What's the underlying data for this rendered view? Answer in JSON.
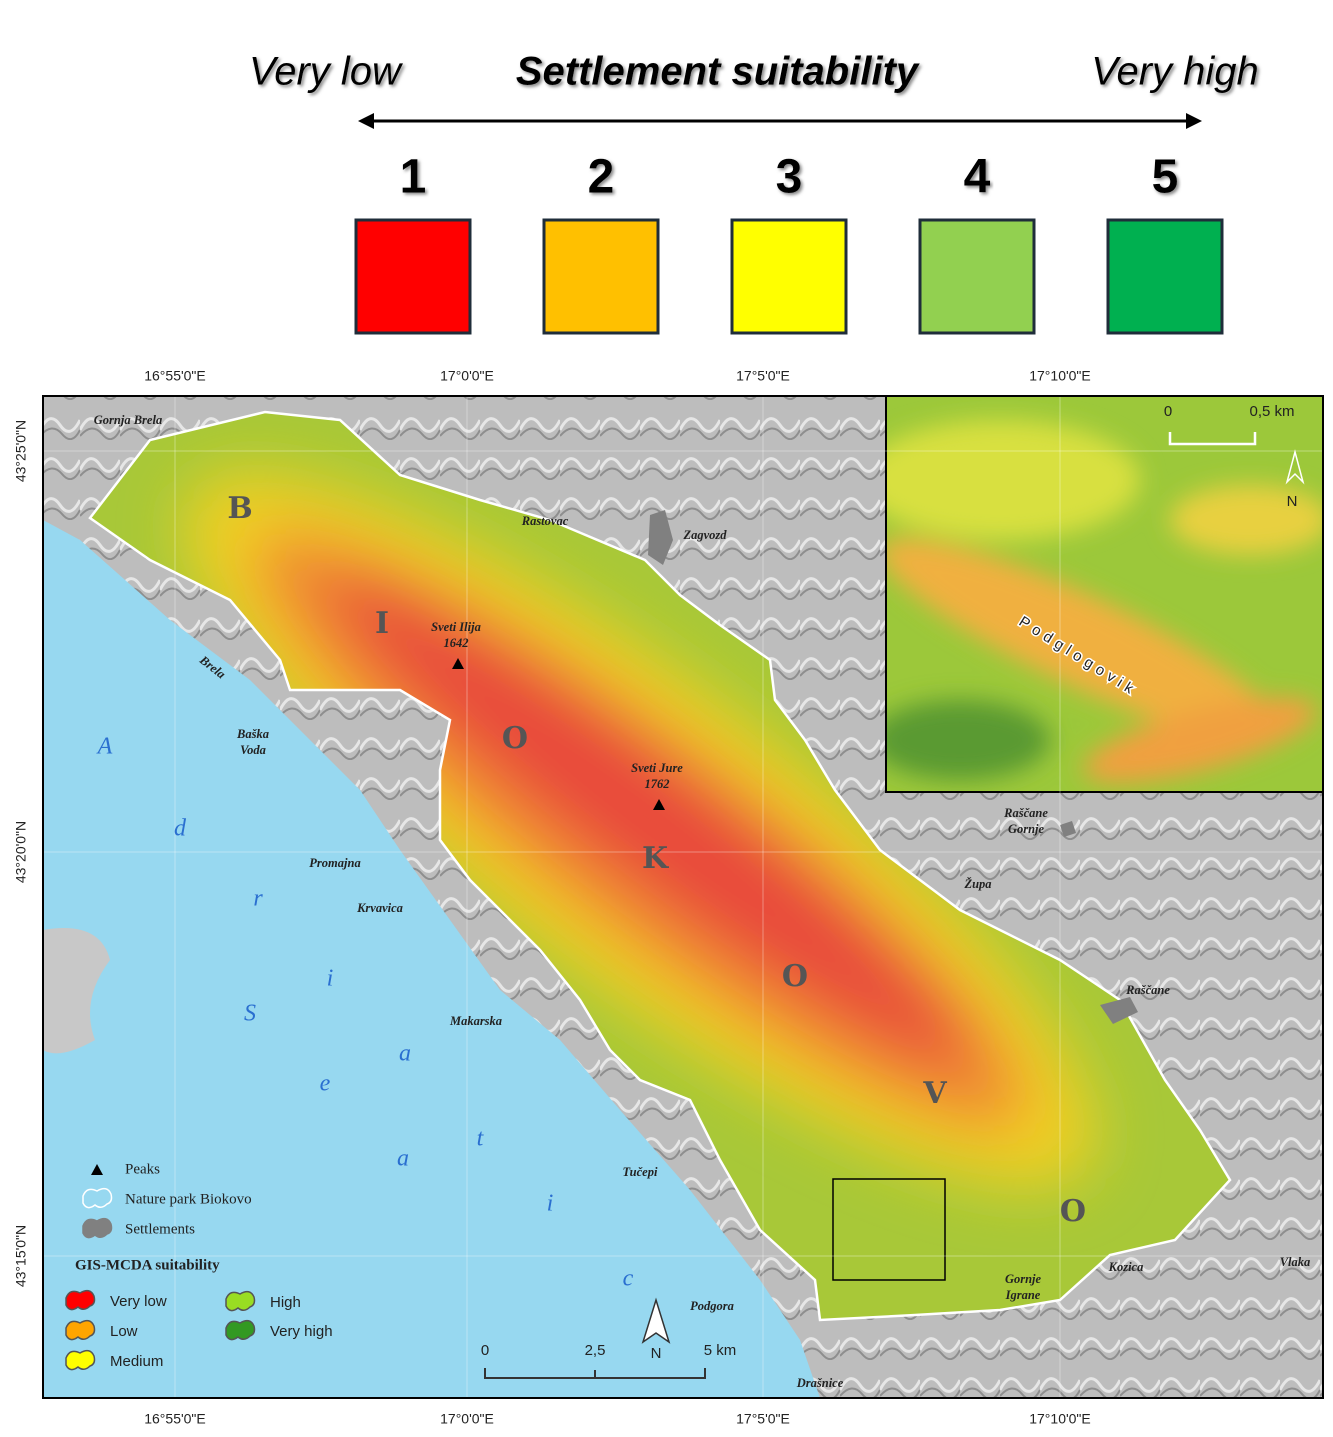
{
  "header": {
    "left_label": "Very low",
    "title": "Settlement suitability",
    "right_label": "Very high",
    "classes": [
      {
        "label": "1",
        "color": "#ff0000"
      },
      {
        "label": "2",
        "color": "#ffc000"
      },
      {
        "label": "3",
        "color": "#ffff00"
      },
      {
        "label": "4",
        "color": "#92d050"
      },
      {
        "label": "5",
        "color": "#00b050"
      }
    ]
  },
  "map": {
    "top_ticks": [
      "16°55'0\"E",
      "17°0'0\"E",
      "17°5'0\"E",
      "17°10'0\"E"
    ],
    "bottom_ticks": [
      "16°55'0\"E",
      "17°0'0\"E",
      "17°5'0\"E",
      "17°10'0\"E"
    ],
    "left_ticks": [
      "43°25'0\"N",
      "43°20'0\"N",
      "43°15'0\"N"
    ],
    "places": [
      {
        "lines": [
          "Gornja Brela"
        ]
      },
      {
        "lines": [
          "Rastovac"
        ]
      },
      {
        "lines": [
          "Zagvozd"
        ]
      },
      {
        "lines": [
          "Brela"
        ]
      },
      {
        "lines": [
          "Baška",
          "Voda"
        ]
      },
      {
        "lines": [
          "Promajna"
        ]
      },
      {
        "lines": [
          "Krvavica"
        ]
      },
      {
        "lines": [
          "Makarska"
        ]
      },
      {
        "lines": [
          "Tučepi"
        ]
      },
      {
        "lines": [
          "Podgora"
        ]
      },
      {
        "lines": [
          "Drašnice"
        ]
      },
      {
        "lines": [
          "Raščane",
          "Gornje"
        ]
      },
      {
        "lines": [
          "Župa"
        ]
      },
      {
        "lines": [
          "Raščane"
        ]
      },
      {
        "lines": [
          "Kozica"
        ]
      },
      {
        "lines": [
          "Vlaka"
        ]
      },
      {
        "lines": [
          "Gornje",
          "Igrane"
        ]
      }
    ],
    "peaks": [
      {
        "name": "Sveti Ilija",
        "elevation": "1642"
      },
      {
        "name": "Sveti Jure",
        "elevation": "1762"
      }
    ],
    "mountain_letters": [
      "B",
      "I",
      "O",
      "K",
      "O",
      "V",
      "O"
    ],
    "sea_letters": {
      "first_word": [
        "A",
        "d",
        "r",
        "i",
        "a",
        "t",
        "i",
        "c"
      ],
      "second_word": [
        "S",
        "e",
        "a"
      ]
    },
    "scale_bar": {
      "labels": [
        "0",
        "2,5",
        "5 km"
      ],
      "north": "N"
    },
    "inset": {
      "label": "Podglogovik",
      "scale_labels": [
        "0",
        "0,5 km"
      ],
      "north": "N"
    }
  },
  "legend": {
    "symbols": [
      "Peaks",
      "Nature park Biokovo",
      "Settlements"
    ],
    "title": "GIS-MCDA suitability",
    "classes": [
      {
        "label": "Very low",
        "color": "#ff0000"
      },
      {
        "label": "Low",
        "color": "#ffa500"
      },
      {
        "label": "Medium",
        "color": "#ffff00"
      },
      {
        "label": "High",
        "color": "#99dd22"
      },
      {
        "label": "Very high",
        "color": "#339922"
      }
    ]
  }
}
